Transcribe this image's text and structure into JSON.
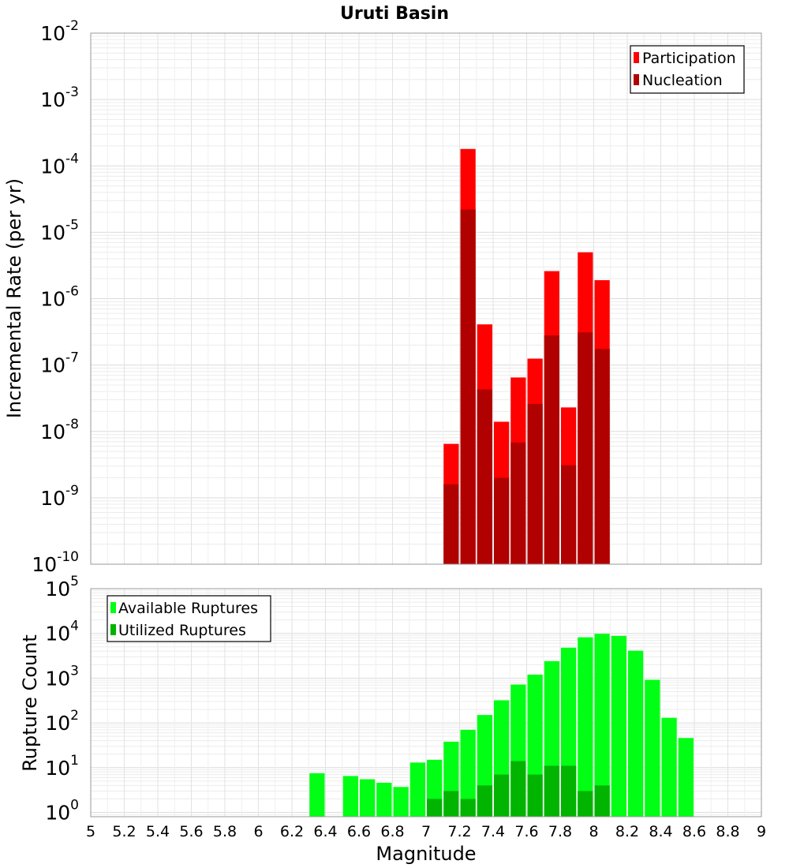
{
  "title": "Uruti Basin",
  "xlabel": "Magnitude",
  "x_ticks": [
    5,
    5.2,
    5.4,
    5.6,
    5.8,
    6,
    6.2,
    6.4,
    6.6,
    6.8,
    7,
    7.2,
    7.4,
    7.6,
    7.8,
    8,
    8.2,
    8.4,
    8.6,
    8.8,
    9
  ],
  "chart_data": [
    {
      "type": "bar",
      "ylabel": "Incremental Rate (per yr)",
      "yscale": "log",
      "ylim": [
        1e-10,
        0.01
      ],
      "y_tick_exponents": [
        -10,
        -9,
        -8,
        -7,
        -6,
        -5,
        -4,
        -3,
        -2
      ],
      "xlim": [
        5,
        9
      ],
      "bin_width": 0.1,
      "legend": "top-right",
      "grid": true,
      "series": [
        {
          "name": "Participation",
          "color": "#ff0000",
          "x": [
            7.15,
            7.25,
            7.35,
            7.45,
            7.55,
            7.65,
            7.75,
            7.85,
            7.95,
            8.05
          ],
          "values": [
            6.5e-09,
            0.00018,
            4.1e-07,
            1.4e-08,
            6.5e-08,
            1.25e-07,
            2.6e-06,
            2.3e-08,
            5e-06,
            1.9e-06
          ]
        },
        {
          "name": "Nucleation",
          "color": "#b00000",
          "x": [
            7.15,
            7.25,
            7.35,
            7.45,
            7.55,
            7.65,
            7.75,
            7.85,
            7.95,
            8.05
          ],
          "values": [
            1.6e-09,
            2.2e-05,
            4.3e-08,
            2e-09,
            6.8e-09,
            2.6e-08,
            2.8e-07,
            3.1e-09,
            3.1e-07,
            1.75e-07
          ]
        }
      ]
    },
    {
      "type": "bar",
      "ylabel": "Rupture Count",
      "yscale": "log",
      "ylim": [
        0.8,
        100000
      ],
      "y_tick_exponents": [
        0,
        1,
        2,
        3,
        4,
        5
      ],
      "xlim": [
        5,
        9
      ],
      "bin_width": 0.1,
      "legend": "top-left",
      "grid": true,
      "series": [
        {
          "name": "Available Ruptures",
          "color": "#00ff14",
          "x": [
            6.35,
            6.55,
            6.65,
            6.75,
            6.85,
            6.95,
            7.05,
            7.15,
            7.25,
            7.35,
            7.45,
            7.55,
            7.65,
            7.75,
            7.85,
            7.95,
            8.05,
            8.15,
            8.25,
            8.35,
            8.45,
            8.55
          ],
          "values": [
            7.5,
            6.5,
            5.5,
            4.6,
            3.7,
            13,
            15,
            38,
            70,
            150,
            320,
            720,
            1200,
            2400,
            4800,
            8200,
            9800,
            8800,
            4100,
            920,
            130,
            46
          ]
        },
        {
          "name": "Utilized Ruptures",
          "color": "#00b400",
          "x": [
            7.05,
            7.15,
            7.25,
            7.35,
            7.45,
            7.55,
            7.65,
            7.75,
            7.85,
            7.95,
            8.05
          ],
          "values": [
            2,
            3,
            2,
            4,
            7,
            14,
            7,
            11,
            11,
            3,
            4
          ]
        }
      ]
    }
  ]
}
